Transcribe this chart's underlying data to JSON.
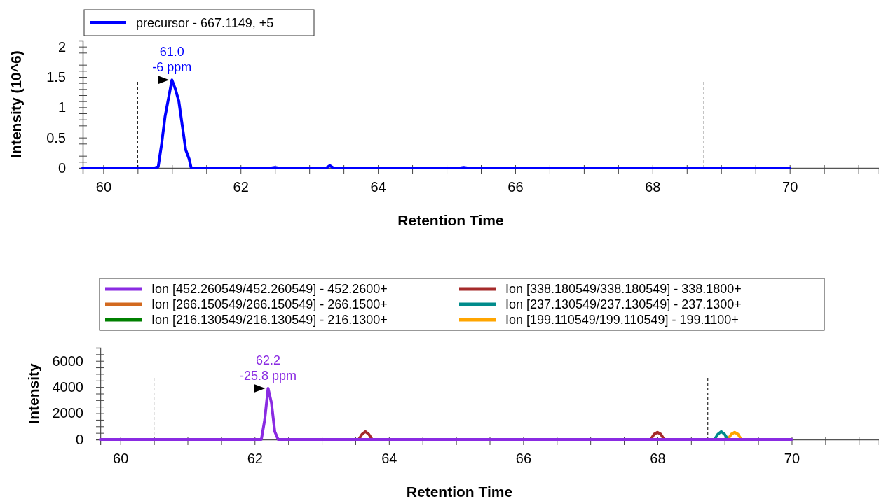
{
  "chart_data": [
    {
      "type": "line",
      "xlabel": "Retention Time",
      "ylabel": "Intensity (10^6)",
      "xlim": [
        59.7,
        71.3
      ],
      "ylim": [
        0,
        2.1
      ],
      "xticks": [
        60,
        {
          "value": 60.5,
          "label": null
        },
        {
          "value": 61,
          "label": null
        },
        {
          "value": 61.5,
          "label": null
        },
        62,
        {
          "value": 62.5,
          "label": null
        },
        {
          "value": 63,
          "label": null
        },
        {
          "value": 63.5,
          "label": null
        },
        64,
        {
          "value": 64.5,
          "label": null
        },
        {
          "value": 65,
          "label": null
        },
        {
          "value": 65.5,
          "label": null
        },
        66,
        {
          "value": 66.5,
          "label": null
        },
        {
          "value": 67,
          "label": null
        },
        {
          "value": 67.5,
          "label": null
        },
        68,
        {
          "value": 68.5,
          "label": null
        },
        {
          "value": 69,
          "label": null
        },
        {
          "value": 69.5,
          "label": null
        },
        70,
        {
          "value": 70.5,
          "label": null
        },
        {
          "value": 71,
          "label": null
        }
      ],
      "yticks": [
        0,
        {
          "value": 0.1,
          "label": null
        },
        {
          "value": 0.2,
          "label": null
        },
        {
          "value": 0.3,
          "label": null
        },
        {
          "value": 0.4,
          "label": null
        },
        0.5,
        {
          "value": 0.6,
          "label": null
        },
        {
          "value": 0.7,
          "label": null
        },
        {
          "value": 0.8,
          "label": null
        },
        {
          "value": 0.9,
          "label": null
        },
        1,
        {
          "value": 1.1,
          "label": null
        },
        {
          "value": 1.2,
          "label": null
        },
        {
          "value": 1.3,
          "label": null
        },
        {
          "value": 1.4,
          "label": null
        },
        1.5,
        {
          "value": 1.6,
          "label": null
        },
        {
          "value": 1.7,
          "label": null
        },
        {
          "value": 1.8,
          "label": null
        },
        {
          "value": 1.9,
          "label": null
        },
        2
      ],
      "legend": "top left",
      "grid": false,
      "ref_lines": [
        {
          "axis": "x",
          "value": 60.5,
          "color": "#000000",
          "line_style": "dashed"
        },
        {
          "axis": "x",
          "value": 68.75,
          "color": "#000000",
          "line_style": "dashed"
        }
      ],
      "annotations": [
        {
          "text": "61.0\n-6 ppm",
          "x": 61.0,
          "y": 1.45
        }
      ],
      "series": [
        {
          "name": "precursor - 667.1149, +5",
          "color": "#0000ff",
          "x": [
            59.7,
            60.75,
            60.8,
            60.85,
            60.9,
            60.95,
            61.0,
            61.05,
            61.1,
            61.15,
            61.2,
            61.25,
            61.28,
            62.45,
            62.5,
            62.55,
            63.25,
            63.3,
            63.35,
            65.2,
            65.25,
            65.3,
            70
          ],
          "values": [
            0,
            0,
            0.02,
            0.4,
            0.85,
            1.15,
            1.45,
            1.3,
            1.1,
            0.7,
            0.3,
            0.15,
            0,
            0,
            0.01,
            0,
            0,
            0.04,
            0,
            0,
            0.01,
            0,
            0
          ]
        }
      ]
    },
    {
      "type": "line",
      "xlabel": "Retention Time",
      "ylabel": "Intensity",
      "xlim": [
        59.7,
        71.3
      ],
      "ylim": [
        0,
        7000
      ],
      "xticks": [
        60,
        {
          "value": 60.5,
          "label": null
        },
        {
          "value": 61,
          "label": null
        },
        {
          "value": 61.5,
          "label": null
        },
        62,
        {
          "value": 62.5,
          "label": null
        },
        {
          "value": 63,
          "label": null
        },
        {
          "value": 63.5,
          "label": null
        },
        64,
        {
          "value": 64.5,
          "label": null
        },
        {
          "value": 65,
          "label": null
        },
        {
          "value": 65.5,
          "label": null
        },
        66,
        {
          "value": 66.5,
          "label": null
        },
        {
          "value": 67,
          "label": null
        },
        {
          "value": 67.5,
          "label": null
        },
        68,
        {
          "value": 68.5,
          "label": null
        },
        {
          "value": 69,
          "label": null
        },
        {
          "value": 69.5,
          "label": null
        },
        70,
        {
          "value": 70.5,
          "label": null
        },
        {
          "value": 71,
          "label": null
        }
      ],
      "yticks": [
        0,
        {
          "value": 500,
          "label": null
        },
        {
          "value": 1000,
          "label": null
        },
        {
          "value": 1500,
          "label": null
        },
        2000,
        {
          "value": 2500,
          "label": null
        },
        {
          "value": 3000,
          "label": null
        },
        {
          "value": 3500,
          "label": null
        },
        4000,
        {
          "value": 4500,
          "label": null
        },
        {
          "value": 5000,
          "label": null
        },
        {
          "value": 5500,
          "label": null
        },
        6000,
        {
          "value": 6500,
          "label": null
        }
      ],
      "legend": "top",
      "grid": false,
      "ref_lines": [
        {
          "axis": "x",
          "value": 60.5,
          "color": "#000000",
          "line_style": "dashed"
        },
        {
          "axis": "x",
          "value": 68.75,
          "color": "#000000",
          "line_style": "dashed"
        }
      ],
      "annotations": [
        {
          "text": "62.2\n-25.8 ppm",
          "x": 62.2,
          "y": 3900
        }
      ],
      "series": [
        {
          "name": "Ion [452.260549/452.260549] - 452.2600+",
          "color": "#8a2be2",
          "x": [
            59.7,
            62.1,
            62.15,
            62.2,
            62.25,
            62.3,
            62.35,
            70
          ],
          "values": [
            0,
            0,
            1500,
            3900,
            2800,
            600,
            0,
            0
          ]
        },
        {
          "name": "Ion [338.180549/338.180549] - 338.1800+",
          "color": "#a52a2a",
          "x": [
            63.55,
            63.6,
            63.65,
            63.7,
            63.75,
            65.8,
            67.9,
            67.95,
            68.0,
            68.05,
            68.1
          ],
          "values": [
            0,
            400,
            600,
            400,
            0,
            null,
            0,
            400,
            550,
            400,
            0
          ]
        },
        {
          "name": "Ion [266.150549/266.150549] - 266.1500+",
          "color": "#d2691e"
        },
        {
          "name": "Ion [237.130549/237.130549] - 237.1300+",
          "color": "#008b8b",
          "x": [
            68.85,
            68.9,
            68.95,
            69.0,
            69.05
          ],
          "values": [
            0,
            400,
            600,
            400,
            0
          ]
        },
        {
          "name": "Ion [216.130549/216.130549] - 216.1300+",
          "color": "#008000"
        },
        {
          "name": "Ion [199.110549/199.110549] - 199.1100+",
          "color": "#ffa500",
          "x": [
            69.05,
            69.1,
            69.15,
            69.2,
            69.25
          ],
          "values": [
            0,
            400,
            550,
            400,
            0
          ]
        }
      ]
    }
  ]
}
